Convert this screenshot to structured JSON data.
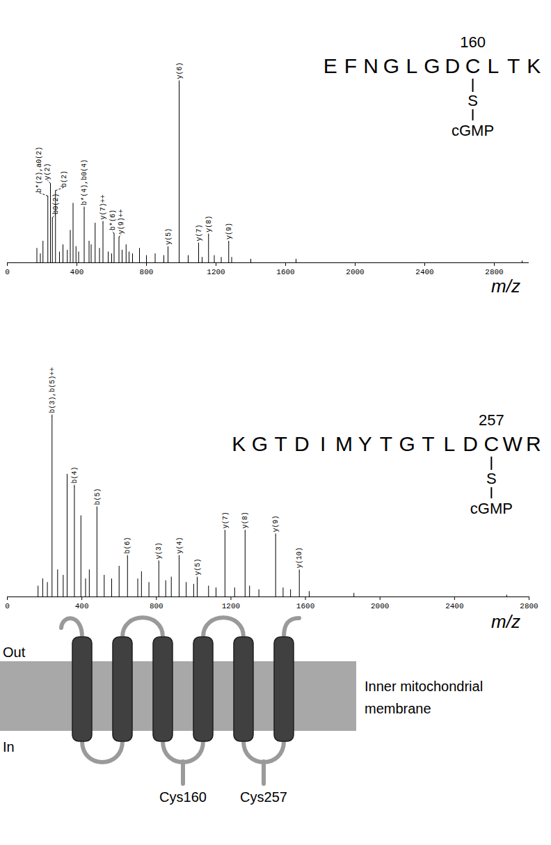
{
  "chart_data": [
    {
      "type": "bar",
      "xlabel": "m/z",
      "color": "#000000",
      "grid": false,
      "tick_labels": "x",
      "xlim": [
        0,
        3000
      ],
      "xticks": [
        0,
        400,
        800,
        1200,
        1600,
        2000,
        2400,
        2800
      ],
      "ylim": [
        0,
        100
      ],
      "x": [
        170,
        190,
        205,
        233,
        248,
        259,
        277,
        300,
        320,
        345,
        362,
        378,
        395,
        410,
        442,
        470,
        482,
        505,
        530,
        550,
        580,
        600,
        614,
        642,
        660,
        683,
        700,
        720,
        760,
        800,
        850,
        900,
        924,
        988,
        1040,
        1100,
        1120,
        1157,
        1190,
        1230,
        1273,
        1290,
        1400,
        1660,
        2960
      ],
      "values": [
        8,
        5,
        12,
        37,
        44,
        25,
        40,
        6,
        10,
        7,
        18,
        33,
        9,
        6,
        30,
        12,
        10,
        22,
        8,
        22,
        6,
        5,
        16,
        14,
        7,
        10,
        6,
        5,
        8,
        4,
        5,
        4,
        8,
        100,
        4,
        10,
        3,
        15,
        4,
        3,
        11,
        3,
        2,
        2,
        1
      ],
      "peak_labels": [
        null,
        null,
        null,
        "b*(2),a0(2)",
        "y(2)",
        "b0(2)",
        "b(2)",
        null,
        null,
        null,
        null,
        null,
        null,
        null,
        "b*(4),b0(4)",
        null,
        null,
        null,
        null,
        "y(7)++",
        null,
        null,
        "b*(6)",
        "y(9)++",
        null,
        null,
        null,
        null,
        null,
        null,
        null,
        null,
        "y(5)",
        "y(6)",
        null,
        "y(7)",
        null,
        "y(8)",
        null,
        null,
        "y(9)",
        null,
        null,
        null,
        null
      ],
      "peptide": {
        "sequence_before": "EFNGLGD",
        "modified_residue": "C",
        "sequence_after": "LTK",
        "residue_number": 160,
        "bond": "S",
        "modification": "cGMP"
      }
    },
    {
      "type": "bar",
      "xlabel": "m/z",
      "color": "#000000",
      "grid": false,
      "tick_labels": "x",
      "xlim": [
        0,
        2800
      ],
      "xticks": [
        0,
        400,
        800,
        1200,
        1600,
        2000,
        2400,
        2800
      ],
      "ylim": [
        0,
        100
      ],
      "x": [
        165,
        190,
        215,
        240,
        270,
        300,
        321,
        360,
        395,
        420,
        440,
        481,
        520,
        560,
        600,
        645,
        700,
        720,
        760,
        813,
        850,
        880,
        922,
        960,
        1000,
        1019,
        1080,
        1120,
        1168,
        1220,
        1276,
        1300,
        1350,
        1440,
        1480,
        1520,
        1567,
        1620,
        1860,
        2680
      ],
      "values": [
        6,
        10,
        8,
        100,
        15,
        12,
        68,
        61,
        45,
        10,
        15,
        49,
        12,
        10,
        17,
        22,
        10,
        14,
        8,
        19,
        9,
        11,
        22,
        8,
        7,
        10,
        6,
        5,
        36,
        5,
        36,
        6,
        4,
        34,
        5,
        4,
        14,
        3,
        2,
        1
      ],
      "peak_labels": [
        null,
        null,
        null,
        "b(3),b(5)++",
        null,
        null,
        null,
        "b(4)",
        null,
        null,
        null,
        "b(5)",
        null,
        null,
        null,
        "b(6)",
        null,
        null,
        null,
        "y(3)",
        null,
        null,
        "y(4)",
        null,
        null,
        "y(5)",
        null,
        null,
        "y(7)",
        null,
        "y(8)",
        null,
        null,
        "y(9)",
        null,
        null,
        "y(10)",
        null,
        null,
        null
      ],
      "peptide": {
        "sequence_before": "KGTDIMYTGTLD",
        "modified_residue": "C",
        "sequence_after": "WR",
        "residue_number": 257,
        "bond": "S",
        "modification": "cGMP"
      }
    }
  ],
  "diagram": {
    "side_labels": {
      "top": "Out",
      "bottom": "In"
    },
    "membrane_label": [
      "Inner mitochondrial",
      "membrane"
    ],
    "sites": [
      {
        "label": "Cys160"
      },
      {
        "label": "Cys257"
      }
    ]
  }
}
